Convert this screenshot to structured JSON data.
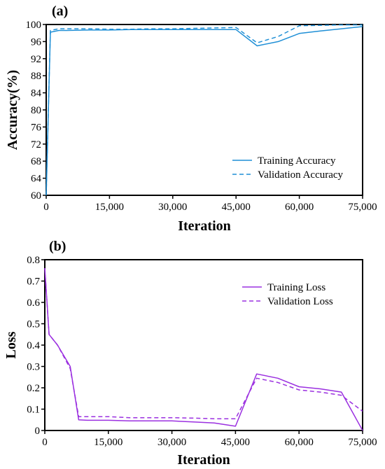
{
  "chart_data": [
    {
      "type": "line",
      "panel_label": "(a)",
      "xlabel": "Iteration",
      "ylabel": "Accuracy(%)",
      "xlim": [
        0,
        75000
      ],
      "ylim": [
        60,
        100
      ],
      "xticks": [
        0,
        15000,
        30000,
        45000,
        60000,
        75000
      ],
      "xtick_labels": [
        "0",
        "15,000",
        "30,000",
        "45,000",
        "60,000",
        "75,000"
      ],
      "yticks": [
        60,
        64,
        68,
        72,
        76,
        80,
        84,
        88,
        92,
        96,
        100
      ],
      "ytick_labels": [
        "60",
        "64",
        "68",
        "72",
        "76",
        "80",
        "84",
        "88",
        "92",
        "96",
        "100"
      ],
      "grid": false,
      "legend_position": "bottom-right",
      "color": "#1f8fd6",
      "series": [
        {
          "name": "Training Accuracy",
          "style": "solid",
          "x": [
            0,
            1000,
            3000,
            5000,
            10000,
            15000,
            20000,
            25000,
            30000,
            35000,
            40000,
            45000,
            50000,
            55000,
            60000,
            65000,
            70000,
            75000
          ],
          "y": [
            60,
            98.2,
            98.6,
            98.6,
            98.7,
            98.7,
            98.8,
            98.8,
            98.8,
            98.8,
            98.8,
            98.8,
            95.0,
            96.0,
            97.9,
            98.5,
            99.0,
            99.5
          ]
        },
        {
          "name": "Validation Accuracy",
          "style": "dashed",
          "x": [
            0,
            1000,
            3000,
            5000,
            10000,
            15000,
            20000,
            25000,
            30000,
            35000,
            40000,
            45000,
            50000,
            55000,
            60000,
            65000,
            70000,
            75000
          ],
          "y": [
            60,
            98.6,
            99.0,
            99.0,
            99.0,
            98.9,
            98.9,
            99.0,
            99.0,
            99.1,
            99.2,
            99.3,
            95.7,
            97.2,
            99.7,
            99.8,
            99.9,
            99.9
          ]
        }
      ]
    },
    {
      "type": "line",
      "panel_label": "(b)",
      "xlabel": "Iteration",
      "ylabel": "Loss",
      "xlim": [
        0,
        75000
      ],
      "ylim": [
        0,
        0.8
      ],
      "xticks": [
        0,
        15000,
        30000,
        45000,
        60000,
        75000
      ],
      "xtick_labels": [
        "0",
        "15,000",
        "30,000",
        "45,000",
        "60,000",
        "75,000"
      ],
      "yticks": [
        0,
        0.1,
        0.2,
        0.3,
        0.4,
        0.5,
        0.6,
        0.7,
        0.8
      ],
      "ytick_labels": [
        "0",
        "0.1",
        "0.2",
        "0.3",
        "0.4",
        "0.5",
        "0.6",
        "0.7",
        "0.8"
      ],
      "grid": false,
      "legend_position": "top-right",
      "color": "#9b30e0",
      "series": [
        {
          "name": "Training Loss",
          "style": "solid",
          "x": [
            0,
            1000,
            3000,
            6000,
            8000,
            10000,
            15000,
            20000,
            25000,
            30000,
            35000,
            40000,
            45000,
            50000,
            55000,
            60000,
            65000,
            70000,
            75000
          ],
          "y": [
            0.76,
            0.45,
            0.4,
            0.3,
            0.05,
            0.048,
            0.048,
            0.045,
            0.045,
            0.045,
            0.04,
            0.035,
            0.02,
            0.265,
            0.245,
            0.205,
            0.195,
            0.18,
            0.0
          ]
        },
        {
          "name": "Validation Loss",
          "style": "dashed",
          "x": [
            0,
            1000,
            3000,
            6000,
            8000,
            10000,
            15000,
            20000,
            25000,
            30000,
            35000,
            40000,
            45000,
            50000,
            55000,
            60000,
            65000,
            70000,
            75000
          ],
          "y": [
            0.76,
            0.45,
            0.4,
            0.29,
            0.065,
            0.065,
            0.065,
            0.06,
            0.06,
            0.06,
            0.058,
            0.055,
            0.055,
            0.245,
            0.225,
            0.19,
            0.18,
            0.165,
            0.09
          ]
        }
      ]
    }
  ]
}
